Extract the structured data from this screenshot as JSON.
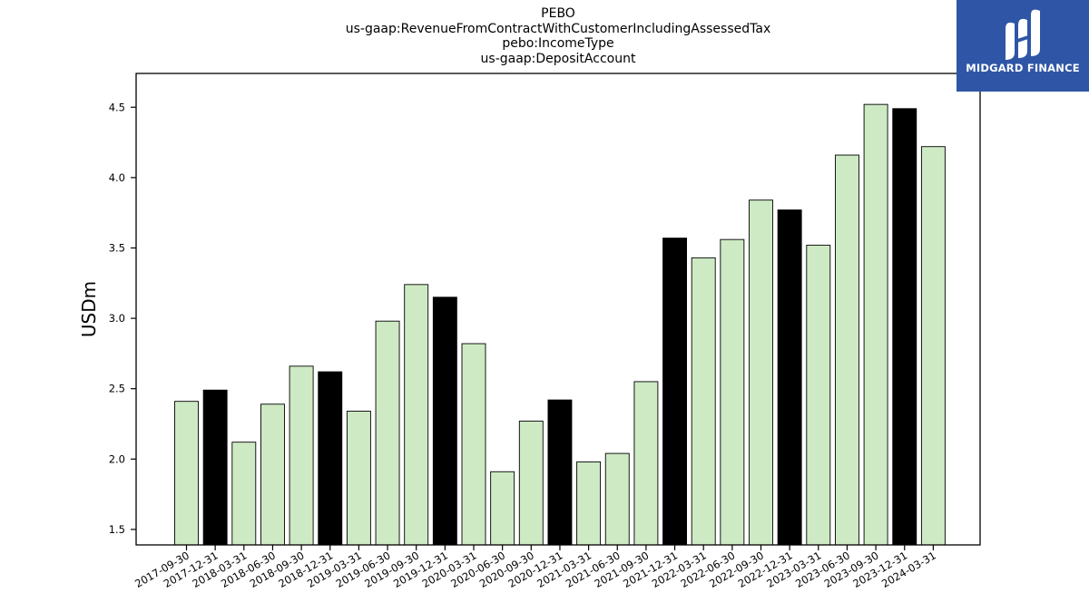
{
  "header": {
    "title_lines": [
      "PEBO",
      "us-gaap:RevenueFromContractWithCustomerIncludingAssessedTax",
      "pebo:IncomeType",
      "us-gaap:DepositAccount"
    ]
  },
  "logo": {
    "text": "MIDGARD FINANCE",
    "background": "#2f56a6"
  },
  "colors": {
    "quarter_bar": "#cdeac4",
    "year_end_bar": "#000000",
    "bar_edge": "#000000"
  },
  "chart_data": {
    "type": "bar",
    "title": "PEBO\nus-gaap:RevenueFromContractWithCustomerIncludingAssessedTax\npebo:IncomeType\nus-gaap:DepositAccount",
    "xlabel": "",
    "ylabel": "USDm",
    "ylim": [
      1.39,
      4.74
    ],
    "yticks": [
      1.5,
      2.0,
      2.5,
      3.0,
      3.5,
      4.0,
      4.5
    ],
    "ytick_labels": [
      "1.5",
      "2.0",
      "2.5",
      "3.0",
      "3.5",
      "4.0",
      "4.5"
    ],
    "grid": false,
    "categories": [
      "2017-09-30",
      "2017-12-31",
      "2018-03-31",
      "2018-06-30",
      "2018-09-30",
      "2018-12-31",
      "2019-03-31",
      "2019-06-30",
      "2019-09-30",
      "2019-12-31",
      "2020-03-31",
      "2020-06-30",
      "2020-09-30",
      "2020-12-31",
      "2021-03-31",
      "2021-06-30",
      "2021-09-30",
      "2021-12-31",
      "2022-03-31",
      "2022-06-30",
      "2022-09-30",
      "2022-12-31",
      "2023-03-31",
      "2023-06-30",
      "2023-09-30",
      "2023-12-31",
      "2024-03-31"
    ],
    "values": [
      2.41,
      2.49,
      2.12,
      2.39,
      2.66,
      2.62,
      2.34,
      2.98,
      3.24,
      3.15,
      2.82,
      1.91,
      2.27,
      2.42,
      1.98,
      2.04,
      2.55,
      3.57,
      3.43,
      3.56,
      3.84,
      3.77,
      3.52,
      4.16,
      4.52,
      4.49,
      4.22
    ],
    "highlight_year_end": [
      false,
      true,
      false,
      false,
      false,
      true,
      false,
      false,
      false,
      true,
      false,
      false,
      false,
      true,
      false,
      false,
      false,
      true,
      false,
      false,
      false,
      true,
      false,
      false,
      false,
      true,
      false
    ]
  }
}
